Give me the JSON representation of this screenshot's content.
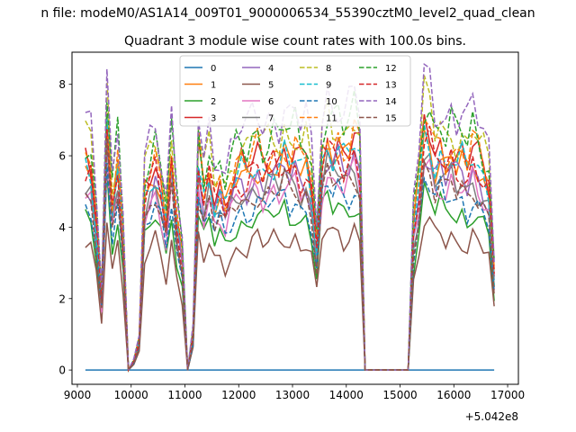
{
  "chart_data": {
    "type": "line",
    "suptitle": "n file: modeM0/AS1A14_009T01_9000006534_55390cztM0_level2_quad_clean",
    "title": "Quadrant 3 module wise count rates with 100.0s bins.",
    "xlim": [
      8900,
      17200
    ],
    "ylim": [
      -0.4,
      8.9
    ],
    "xticks": [
      9000,
      10000,
      11000,
      12000,
      13000,
      14000,
      15000,
      16000,
      17000
    ],
    "xtick_labels": [
      "9000",
      "10000",
      "11000",
      "12000",
      "13000",
      "14000",
      "15000",
      "16000",
      "17000"
    ],
    "yticks": [
      0,
      2,
      4,
      6,
      8
    ],
    "ytick_labels": [
      "0",
      "2",
      "4",
      "6",
      "8"
    ],
    "x_offset_label": "+5.042e8",
    "x": [
      9150,
      9250,
      9350,
      9450,
      9550,
      9650,
      9750,
      9850,
      9950,
      10050,
      10150,
      10250,
      10350,
      10450,
      10550,
      10650,
      10750,
      10850,
      10950,
      11050,
      11150,
      11250,
      11350,
      11450,
      11550,
      11650,
      11750,
      11850,
      11950,
      12050,
      12150,
      12250,
      12350,
      12450,
      12550,
      12650,
      12750,
      12850,
      12950,
      13050,
      13150,
      13250,
      13350,
      13450,
      13550,
      13650,
      13750,
      13850,
      13950,
      14050,
      14150,
      14250,
      14350,
      14450,
      14550,
      14650,
      14750,
      14850,
      14950,
      15050,
      15150,
      15250,
      15350,
      15450,
      15550,
      15650,
      15750,
      15850,
      15950,
      16050,
      16150,
      16250,
      16350,
      16450,
      16550,
      16650,
      16750
    ],
    "shape": [
      0.7,
      0.68,
      0.5,
      0.25,
      0.85,
      0.55,
      0.7,
      0.45,
      0.0,
      0.03,
      0.1,
      0.6,
      0.65,
      0.7,
      0.62,
      0.5,
      0.72,
      0.5,
      0.38,
      0.0,
      0.12,
      0.72,
      0.6,
      0.68,
      0.58,
      0.62,
      0.56,
      0.62,
      0.66,
      0.68,
      0.66,
      0.7,
      0.72,
      0.68,
      0.7,
      0.72,
      0.7,
      0.74,
      0.7,
      0.73,
      0.68,
      0.7,
      0.62,
      0.42,
      0.72,
      0.78,
      0.74,
      0.76,
      0.72,
      0.74,
      0.78,
      0.72,
      0.0,
      0.0,
      0.0,
      0.0,
      0.0,
      0.0,
      0.0,
      0.0,
      0.0,
      0.48,
      0.62,
      0.82,
      0.8,
      0.72,
      0.75,
      0.7,
      0.74,
      0.7,
      0.72,
      0.68,
      0.74,
      0.7,
      0.66,
      0.62,
      0.32
    ],
    "series": [
      {
        "name": "0",
        "level": 0.0,
        "color": "#1f77b4",
        "style": "solid"
      },
      {
        "name": "1",
        "level": 8.0,
        "color": "#ff7f0e",
        "style": "solid"
      },
      {
        "name": "2",
        "level": 6.1,
        "color": "#2ca02c",
        "style": "solid"
      },
      {
        "name": "3",
        "level": 8.4,
        "color": "#d62728",
        "style": "solid"
      },
      {
        "name": "4",
        "level": 7.6,
        "color": "#9467bd",
        "style": "solid"
      },
      {
        "name": "5",
        "level": 5.1,
        "color": "#8c564b",
        "style": "solid"
      },
      {
        "name": "6",
        "level": 7.1,
        "color": "#e377c2",
        "style": "solid"
      },
      {
        "name": "7",
        "level": 7.3,
        "color": "#7f7f7f",
        "style": "solid"
      },
      {
        "name": "8",
        "level": 9.2,
        "color": "#bcbd22",
        "style": "dashed"
      },
      {
        "name": "9",
        "level": 8.1,
        "color": "#17becf",
        "style": "dashed"
      },
      {
        "name": "10",
        "level": 6.6,
        "color": "#1f77b4",
        "style": "dashed"
      },
      {
        "name": "11",
        "level": 8.6,
        "color": "#ff7f0e",
        "style": "dashed"
      },
      {
        "name": "12",
        "level": 9.3,
        "color": "#2ca02c",
        "style": "dashed"
      },
      {
        "name": "13",
        "level": 7.9,
        "color": "#d62728",
        "style": "dashed"
      },
      {
        "name": "14",
        "level": 10.0,
        "color": "#9467bd",
        "style": "dashed"
      },
      {
        "name": "15",
        "level": 7.0,
        "color": "#8c564b",
        "style": "dashed"
      }
    ],
    "legend_position": "upper center",
    "legend_columns": 4
  }
}
